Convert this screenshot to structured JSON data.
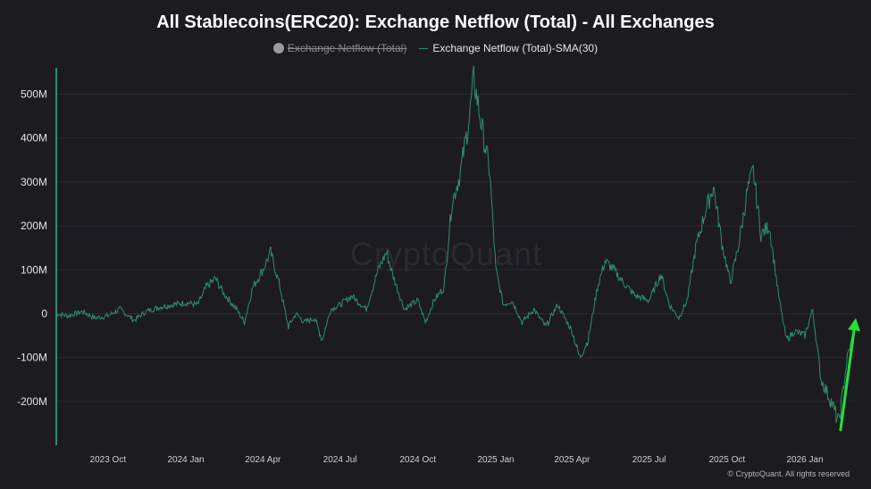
{
  "chart_data": {
    "type": "line",
    "title": "All Stablecoins(ERC20): Exchange Netflow (Total) - All Exchanges",
    "legend": [
      {
        "name": "Exchange Netflow (Total)",
        "disabled": true,
        "color": "#9a9a9e"
      },
      {
        "name": "Exchange Netflow (Total)-SMA(30)",
        "disabled": false,
        "color": "#2e8f6a"
      }
    ],
    "x_tick_labels": [
      "2023 Oct",
      "2024 Jan",
      "2024 Apr",
      "2024 Jul",
      "2024 Oct",
      "2025 Jan",
      "2025 Apr",
      "2025 Jul",
      "2025 Oct",
      "2026 Jan"
    ],
    "y_tick_labels": [
      "500M",
      "400M",
      "300M",
      "200M",
      "100M",
      "0",
      "-100M",
      "-200M"
    ],
    "y_ticks": [
      500,
      400,
      300,
      200,
      100,
      0,
      -100,
      -200
    ],
    "ylim": [
      -300,
      560
    ],
    "xlim": [
      "2023-08-01",
      "2026-03-01"
    ],
    "y_unit": "M",
    "grid": true,
    "series": [
      {
        "name": "Exchange Netflow (Total)-SMA(30)",
        "color": "#2e8f6a",
        "points": [
          [
            "2023-08-01",
            0
          ],
          [
            "2023-08-15",
            -5
          ],
          [
            "2023-09-01",
            5
          ],
          [
            "2023-09-15",
            -10
          ],
          [
            "2023-10-01",
            -5
          ],
          [
            "2023-10-15",
            10
          ],
          [
            "2023-11-01",
            -15
          ],
          [
            "2023-11-15",
            5
          ],
          [
            "2023-12-01",
            15
          ],
          [
            "2023-12-15",
            20
          ],
          [
            "2024-01-01",
            25
          ],
          [
            "2024-01-15",
            20
          ],
          [
            "2024-01-25",
            60
          ],
          [
            "2024-02-05",
            80
          ],
          [
            "2024-02-15",
            45
          ],
          [
            "2024-03-01",
            10
          ],
          [
            "2024-03-10",
            -20
          ],
          [
            "2024-03-20",
            60
          ],
          [
            "2024-04-01",
            100
          ],
          [
            "2024-04-10",
            140
          ],
          [
            "2024-04-20",
            70
          ],
          [
            "2024-05-01",
            -30
          ],
          [
            "2024-05-10",
            0
          ],
          [
            "2024-05-20",
            -20
          ],
          [
            "2024-06-01",
            -10
          ],
          [
            "2024-06-10",
            -60
          ],
          [
            "2024-06-20",
            10
          ],
          [
            "2024-07-01",
            20
          ],
          [
            "2024-07-15",
            40
          ],
          [
            "2024-08-01",
            10
          ],
          [
            "2024-08-15",
            100
          ],
          [
            "2024-08-25",
            140
          ],
          [
            "2024-09-01",
            90
          ],
          [
            "2024-09-15",
            10
          ],
          [
            "2024-10-01",
            30
          ],
          [
            "2024-10-10",
            -20
          ],
          [
            "2024-10-20",
            30
          ],
          [
            "2024-11-01",
            60
          ],
          [
            "2024-11-10",
            250
          ],
          [
            "2024-11-20",
            320
          ],
          [
            "2024-12-01",
            450
          ],
          [
            "2024-12-06",
            535
          ],
          [
            "2024-12-15",
            430
          ],
          [
            "2024-12-25",
            320
          ],
          [
            "2025-01-01",
            100
          ],
          [
            "2025-01-10",
            20
          ],
          [
            "2025-01-20",
            30
          ],
          [
            "2025-02-01",
            -20
          ],
          [
            "2025-02-15",
            10
          ],
          [
            "2025-03-01",
            -30
          ],
          [
            "2025-03-15",
            20
          ],
          [
            "2025-04-01",
            -40
          ],
          [
            "2025-04-10",
            -100
          ],
          [
            "2025-04-20",
            -60
          ],
          [
            "2025-05-01",
            60
          ],
          [
            "2025-05-10",
            120
          ],
          [
            "2025-05-20",
            100
          ],
          [
            "2025-06-01",
            70
          ],
          [
            "2025-06-15",
            40
          ],
          [
            "2025-07-01",
            30
          ],
          [
            "2025-07-15",
            90
          ],
          [
            "2025-07-25",
            20
          ],
          [
            "2025-08-05",
            -10
          ],
          [
            "2025-08-15",
            30
          ],
          [
            "2025-08-25",
            150
          ],
          [
            "2025-09-05",
            230
          ],
          [
            "2025-09-15",
            290
          ],
          [
            "2025-09-25",
            160
          ],
          [
            "2025-10-05",
            70
          ],
          [
            "2025-10-15",
            160
          ],
          [
            "2025-10-25",
            280
          ],
          [
            "2025-11-01",
            325
          ],
          [
            "2025-11-10",
            180
          ],
          [
            "2025-11-20",
            200
          ],
          [
            "2025-12-01",
            40
          ],
          [
            "2025-12-10",
            -60
          ],
          [
            "2025-12-20",
            -40
          ],
          [
            "2026-01-01",
            -50
          ],
          [
            "2026-01-10",
            10
          ],
          [
            "2026-01-20",
            -150
          ],
          [
            "2026-02-01",
            -200
          ],
          [
            "2026-02-10",
            -250
          ],
          [
            "2026-02-20",
            -100
          ],
          [
            "2026-03-01",
            -30
          ]
        ]
      }
    ],
    "annotations": [
      {
        "type": "arrow",
        "color": "#22e33a",
        "from": [
          "2026-02-12",
          -265
        ],
        "to": [
          "2026-03-02",
          -10
        ]
      }
    ],
    "watermark": "CryptoQuant",
    "copyright": "© CryptoQuant. All rights reserved"
  }
}
